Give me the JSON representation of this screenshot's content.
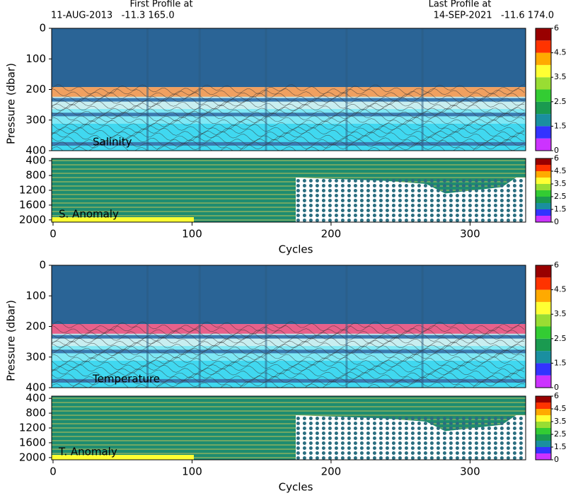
{
  "header": {
    "first_label": "First Profile at",
    "first_info": "11-AUG-2013   -11.3 165.0",
    "last_label": "Last Profile at",
    "last_info": "14-SEP-2021   -11.6 174.0"
  },
  "chart_data": [
    {
      "type": "section",
      "label": "Salinity",
      "ylabel": "Pressure (dbar)",
      "accent": "#f0a060",
      "ylim": [
        0,
        400
      ],
      "yticks": [
        0,
        100,
        200,
        300,
        400
      ],
      "xlim": [
        -1,
        340
      ],
      "colorbar_ticks": [
        0,
        1.5,
        2.5,
        3.5,
        4.5,
        6
      ],
      "colorbar_colors": [
        "#cc33ff",
        "#3333ff",
        "#1a8fa0",
        "#1a9a50",
        "#33cc33",
        "#99dd33",
        "#ffff33",
        "#ffaa00",
        "#ff3300",
        "#990000"
      ]
    },
    {
      "type": "anomaly",
      "label": "S. Anomaly",
      "xlabel": "Cycles",
      "ylim": [
        340,
        2060
      ],
      "yticks": [
        400,
        800,
        1200,
        1600,
        2000
      ],
      "xlim": [
        -1,
        340
      ],
      "xticks": [
        0,
        100,
        200,
        300
      ],
      "colorbar_ticks": [
        0,
        1.5,
        2.5,
        3.5,
        4.5,
        6
      ],
      "colorbar_colors": [
        "#cc33ff",
        "#3333ff",
        "#1a8fa0",
        "#1a9a50",
        "#33cc33",
        "#99dd33",
        "#ffff33",
        "#ffaa00",
        "#ff3300",
        "#990000"
      ]
    },
    {
      "type": "section",
      "label": "Temperature",
      "ylabel": "Pressure (dbar)",
      "accent": "#e8608a",
      "ylim": [
        0,
        400
      ],
      "yticks": [
        0,
        100,
        200,
        300,
        400
      ],
      "xlim": [
        -1,
        340
      ],
      "colorbar_ticks": [
        0,
        1.5,
        2.5,
        3.5,
        4.5,
        6
      ],
      "colorbar_colors": [
        "#cc33ff",
        "#3333ff",
        "#1a8fa0",
        "#1a9a50",
        "#33cc33",
        "#99dd33",
        "#ffff33",
        "#ffaa00",
        "#ff3300",
        "#990000"
      ]
    },
    {
      "type": "anomaly",
      "label": "T. Anomaly",
      "xlabel": "Cycles",
      "ylim": [
        340,
        2060
      ],
      "yticks": [
        400,
        800,
        1200,
        1600,
        2000
      ],
      "xlim": [
        -1,
        340
      ],
      "xticks": [
        0,
        100,
        200,
        300
      ],
      "colorbar_ticks": [
        0,
        1.5,
        2.5,
        3.5,
        4.5,
        6
      ],
      "colorbar_colors": [
        "#cc33ff",
        "#3333ff",
        "#1a8fa0",
        "#1a9a50",
        "#33cc33",
        "#99dd33",
        "#ffff33",
        "#ffaa00",
        "#ff3300",
        "#990000"
      ]
    }
  ]
}
